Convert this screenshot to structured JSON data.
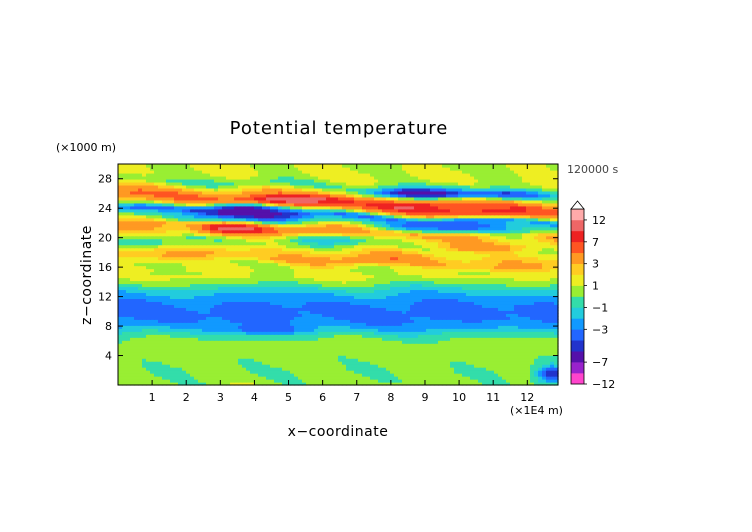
{
  "chart_data": {
    "type": "heatmap",
    "title": "Potential temperature",
    "xlabel": "x−coordinate",
    "ylabel": "z−coordinate",
    "x_unit": "(×1E4 m)",
    "y_unit": "(×1000 m)",
    "time_label": "120000 s",
    "xlim": [
      0,
      12.9
    ],
    "ylim": [
      0,
      30
    ],
    "x_ticks": [
      1,
      2,
      3,
      4,
      5,
      6,
      7,
      8,
      9,
      10,
      11,
      12
    ],
    "y_ticks": [
      4,
      8,
      12,
      16,
      20,
      24,
      28
    ],
    "colorbar": {
      "levels": [
        -12,
        -9,
        -7,
        -5,
        -4,
        -3,
        -2,
        -1,
        0,
        1,
        2,
        3,
        5,
        7,
        9,
        12
      ],
      "tick_labels": [
        "12",
        "7",
        "3",
        "1",
        "−1",
        "−3",
        "−7",
        "−12"
      ],
      "tick_values": [
        12,
        7,
        3,
        1,
        -1,
        -3,
        -7,
        -12
      ],
      "colors": [
        "#ff44cc",
        "#9922cc",
        "#5511aa",
        "#2233cc",
        "#2266ff",
        "#1199ff",
        "#22ccdd",
        "#33ddaa",
        "#99ee33",
        "#eeee22",
        "#ffcc22",
        "#ff9922",
        "#ff5522",
        "#ee2222",
        "#ee6666",
        "#ffaaaa"
      ],
      "over_color": "#ffffff"
    },
    "profile": [
      {
        "z": 0,
        "value": 0.2
      },
      {
        "z": 2,
        "value": 0.1
      },
      {
        "z": 4,
        "value": 0.3
      },
      {
        "z": 5,
        "value": 0.6
      },
      {
        "z": 6,
        "value": 0.3
      },
      {
        "z": 7,
        "value": -0.8
      },
      {
        "z": 8,
        "value": -2.5
      },
      {
        "z": 9,
        "value": -3.2
      },
      {
        "z": 10,
        "value": -3.3
      },
      {
        "z": 11,
        "value": -3.1
      },
      {
        "z": 12,
        "value": -2.4
      },
      {
        "z": 13,
        "value": -1.3
      },
      {
        "z": 14,
        "value": 0.4
      },
      {
        "z": 15,
        "value": 1.4
      },
      {
        "z": 16,
        "value": 1.0
      },
      {
        "z": 17,
        "value": 3.2
      },
      {
        "z": 18,
        "value": 2.2
      },
      {
        "z": 19,
        "value": 0.5
      },
      {
        "z": 20,
        "value": 2.0
      },
      {
        "z": 21,
        "value": 4.5
      },
      {
        "z": 22,
        "value": 0.8
      },
      {
        "z": 23,
        "value": -3.0
      },
      {
        "z": 24,
        "value": 3.0
      },
      {
        "z": 25,
        "value": 6.0
      },
      {
        "z": 26,
        "value": 2.5
      },
      {
        "z": 27,
        "value": -0.3
      },
      {
        "z": 28,
        "value": 1.0
      },
      {
        "z": 29,
        "value": 1.2
      },
      {
        "z": 30,
        "value": 0.8
      }
    ],
    "features": [
      {
        "x": 3.7,
        "z": 24.1,
        "amp": -8,
        "sx": 1.3,
        "sz": 0.8
      },
      {
        "x": 5.3,
        "z": 25.1,
        "amp": 6,
        "sx": 1.4,
        "sz": 0.7
      },
      {
        "x": 3.4,
        "z": 21.3,
        "amp": 7,
        "sx": 1.0,
        "sz": 0.7
      },
      {
        "x": 2.3,
        "z": 22.6,
        "amp": -3,
        "sx": 1.2,
        "sz": 0.7
      },
      {
        "x": 5.0,
        "z": 22.6,
        "amp": -2,
        "sx": 1.5,
        "sz": 0.8
      },
      {
        "x": 8.9,
        "z": 26.0,
        "amp": -7,
        "sx": 1.6,
        "sz": 0.7
      },
      {
        "x": 11.2,
        "z": 25.8,
        "amp": -4,
        "sx": 1.4,
        "sz": 0.7
      },
      {
        "x": 10.4,
        "z": 23.4,
        "amp": 5,
        "sx": 1.8,
        "sz": 0.7
      },
      {
        "x": 8.2,
        "z": 24.2,
        "amp": 3,
        "sx": 1.3,
        "sz": 0.6
      },
      {
        "x": 9.5,
        "z": 21.4,
        "amp": -4,
        "sx": 2.2,
        "sz": 0.7
      },
      {
        "x": 11.5,
        "z": 20.6,
        "amp": -3,
        "sx": 1.5,
        "sz": 0.8
      },
      {
        "x": 6.2,
        "z": 19.8,
        "amp": -3,
        "sx": 1.6,
        "sz": 0.6
      },
      {
        "x": 10.8,
        "z": 18.6,
        "amp": 3,
        "sx": 1.6,
        "sz": 0.6
      },
      {
        "x": 1.2,
        "z": 19.3,
        "amp": -2,
        "sx": 1.2,
        "sz": 0.7
      },
      {
        "x": 7.8,
        "z": 17.2,
        "amp": 1.5,
        "sx": 1.4,
        "sz": 0.8
      },
      {
        "x": 4.5,
        "z": 7.5,
        "amp": -1.5,
        "sx": 1.5,
        "sz": 0.6
      },
      {
        "x": 12.7,
        "z": 1.5,
        "amp": -5,
        "sx": 0.4,
        "sz": 1.2
      }
    ]
  }
}
